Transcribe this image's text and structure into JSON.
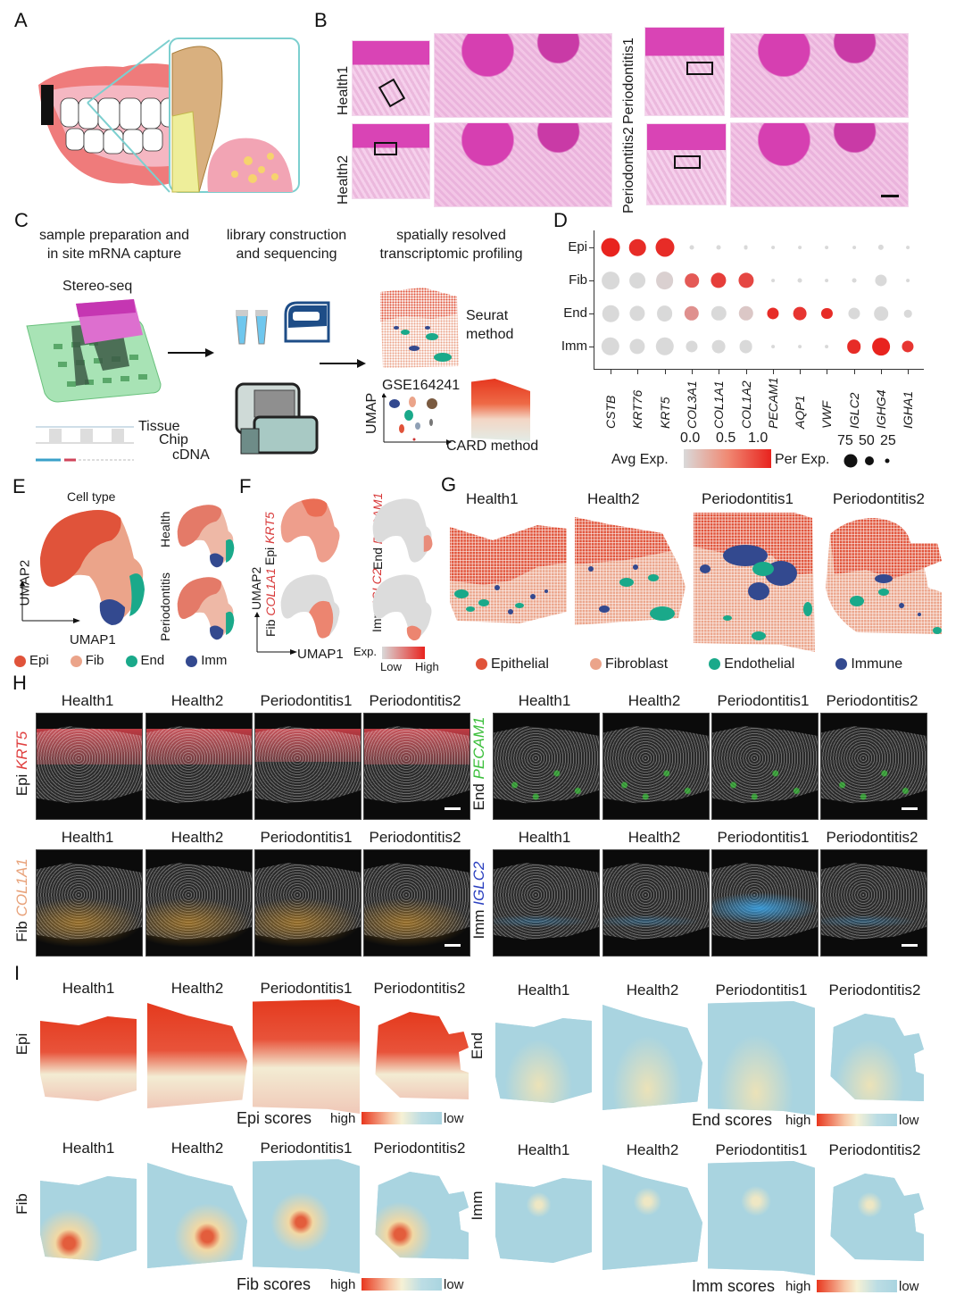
{
  "panels": {
    "A": {
      "label": "A"
    },
    "B": {
      "label": "B",
      "samples": [
        "Health1",
        "Health2",
        "Periodontitis1",
        "Periodontitis2"
      ]
    },
    "C": {
      "label": "C",
      "steps": [
        {
          "line1": "sample preparation and",
          "line2": "in site mRNA capture"
        },
        {
          "line1": "library construction",
          "line2": "and sequencing"
        },
        {
          "line1": "spatially resolved",
          "line2": "transcriptomic profiling"
        }
      ],
      "stereo_seq": "Stereo-seq",
      "tissue": "Tissue",
      "chip": "Chip",
      "cdna": "cDNA",
      "seurat_line1": "Seurat",
      "seurat_line2": "method",
      "gse": "GSE164241",
      "umap": "UMAP",
      "card": "CARD method"
    },
    "D": {
      "label": "D",
      "avg_exp_label": "Avg Exp.",
      "per_exp_label": "Per Exp.",
      "avg_ticks": [
        "0.0",
        "0.5",
        "1.0"
      ],
      "per_ticks": [
        "75",
        "50",
        "25"
      ]
    },
    "E": {
      "label": "E",
      "title": "Cell type",
      "health": "Health",
      "periodontitis": "Periodontitis",
      "umap1": "UMAP1",
      "umap2": "UMAP2",
      "legend": [
        {
          "name": "Epi",
          "color": "#e0533a"
        },
        {
          "name": "Fib",
          "color": "#eba48a"
        },
        {
          "name": "End",
          "color": "#1aa98a"
        },
        {
          "name": "Imm",
          "color": "#33498f"
        }
      ]
    },
    "F": {
      "label": "F",
      "epi": "Epi",
      "epi_gene": "KRT5",
      "end": "End",
      "end_gene": "PECAM1",
      "fib": "Fib",
      "fib_gene": "COL1A1",
      "imm": "Imm",
      "imm_gene": "IGLC2",
      "umap1": "UMAP1",
      "umap2": "UMAP2",
      "exp": "Exp.",
      "low": "Low",
      "high": "High"
    },
    "G": {
      "label": "G",
      "samples": [
        "Health1",
        "Health2",
        "Periodontitis1",
        "Periodontitis2"
      ],
      "legend": [
        {
          "name": "Epithelial",
          "color": "#e0533a"
        },
        {
          "name": "Fibroblast",
          "color": "#eba48a"
        },
        {
          "name": "Endothelial",
          "color": "#1aa98a"
        },
        {
          "name": "Immune",
          "color": "#33498f"
        }
      ]
    },
    "H": {
      "label": "H",
      "samples": [
        "Health1",
        "Health2",
        "Periodontitis1",
        "Periodontitis2"
      ],
      "rows": [
        {
          "type": "Epi",
          "gene": "KRT5",
          "color": "#e04040"
        },
        {
          "type": "End",
          "gene": "PECAM1",
          "color": "#3bbf3b"
        },
        {
          "type": "Fib",
          "gene": "COL1A1",
          "color": "#e8a27a"
        },
        {
          "type": "Imm",
          "gene": "IGLC2",
          "color": "#2a3fbf"
        }
      ]
    },
    "I": {
      "label": "I",
      "samples": [
        "Health1",
        "Health2",
        "Periodontitis1",
        "Periodontitis2"
      ],
      "rows": [
        {
          "type": "Epi",
          "scores": "Epi scores"
        },
        {
          "type": "End",
          "scores": "End scores"
        },
        {
          "type": "Fib",
          "scores": "Fib scores"
        },
        {
          "type": "Imm",
          "scores": "Imm scores"
        }
      ],
      "high": "high",
      "low": "low"
    }
  },
  "chart_data": {
    "type": "dotplot",
    "title": "",
    "xlabel": "",
    "ylabel": "",
    "categories": [
      "CSTB",
      "KRT76",
      "KRT5",
      "COL3A1",
      "COL1A1",
      "COL1A2",
      "PECAM1",
      "AQP1",
      "VWF",
      "IGLC2",
      "IGHG4",
      "IGHA1"
    ],
    "rows": [
      "Epi",
      "Fib",
      "End",
      "Imm"
    ],
    "avg_exp_range": [
      0.0,
      1.0
    ],
    "per_exp_legend": [
      75,
      50,
      25
    ],
    "series": [
      {
        "name": "Epi",
        "avg_exp": [
          1.0,
          0.95,
          0.95,
          0.0,
          0.0,
          0.0,
          0.0,
          0.0,
          0.0,
          0.0,
          0.0,
          0.0
        ],
        "pct_exp": [
          90,
          70,
          90,
          5,
          5,
          5,
          3,
          3,
          3,
          3,
          8,
          3
        ]
      },
      {
        "name": "Fib",
        "avg_exp": [
          0.0,
          0.0,
          0.05,
          0.7,
          0.85,
          0.8,
          0.0,
          0.0,
          0.0,
          0.0,
          0.0,
          0.0
        ],
        "pct_exp": [
          80,
          65,
          80,
          50,
          60,
          60,
          3,
          5,
          3,
          5,
          35,
          3
        ]
      },
      {
        "name": "End",
        "avg_exp": [
          0.0,
          0.0,
          0.0,
          0.4,
          0.0,
          0.1,
          0.95,
          0.9,
          0.95,
          0.0,
          0.0,
          0.0
        ],
        "pct_exp": [
          70,
          60,
          65,
          55,
          55,
          55,
          35,
          45,
          30,
          35,
          50,
          15
        ]
      },
      {
        "name": "Imm",
        "avg_exp": [
          0.0,
          0.0,
          0.0,
          0.0,
          0.0,
          0.0,
          0.0,
          0.0,
          0.0,
          0.95,
          1.0,
          0.9
        ],
        "pct_exp": [
          85,
          60,
          85,
          35,
          45,
          45,
          3,
          3,
          3,
          50,
          80,
          35
        ]
      }
    ],
    "legend_position": "bottom"
  }
}
